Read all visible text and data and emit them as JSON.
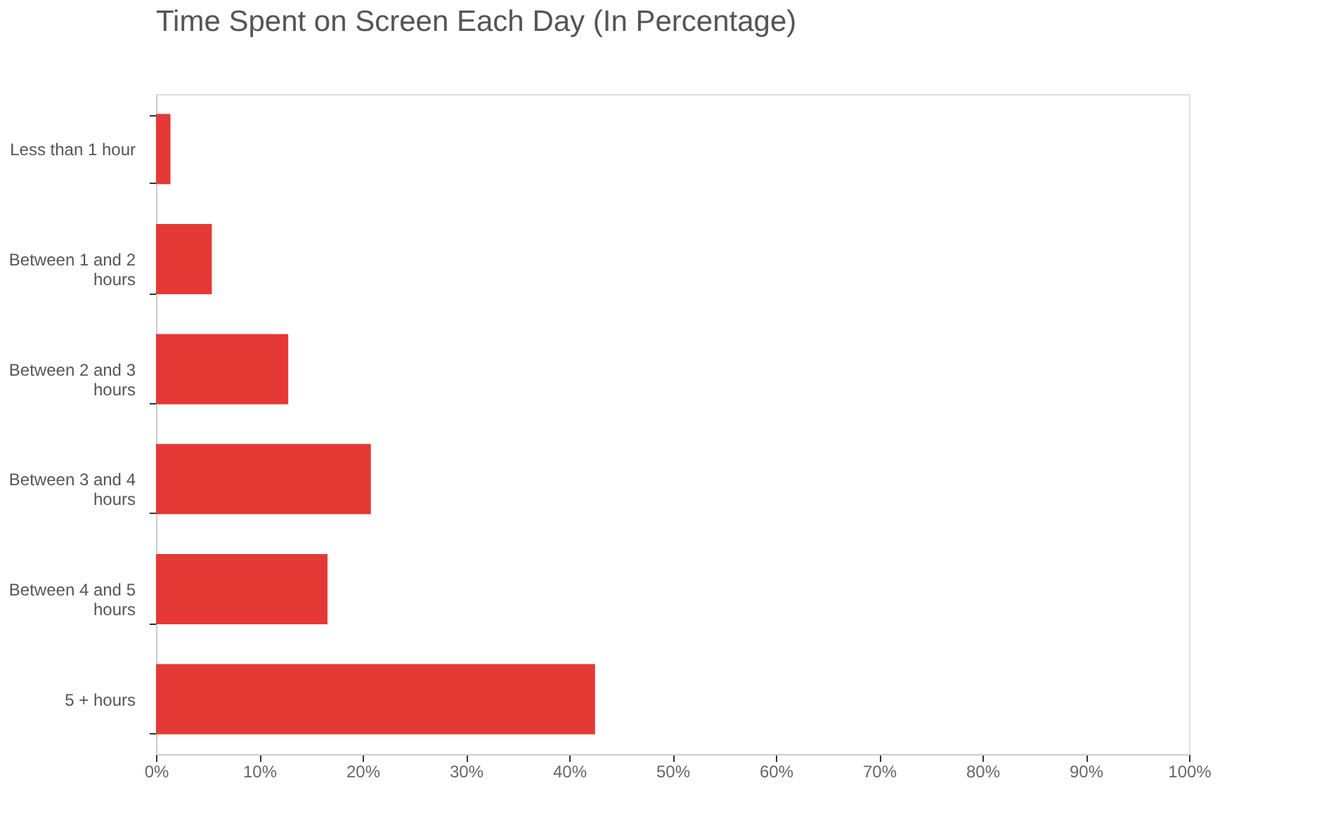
{
  "chart_data": {
    "type": "bar",
    "orientation": "horizontal",
    "title": "Time Spent on Screen Each Day (In Percentage)",
    "categories": [
      "Less than 1 hour",
      "Between 1 and 2 hours",
      "Between 2 and 3 hours",
      "Between 3 and 4 hours",
      "Between 4 and 5 hours",
      "5 + hours"
    ],
    "values": [
      1.4,
      5.4,
      12.8,
      20.8,
      16.6,
      42.5
    ],
    "color": "#e53935",
    "xlim": [
      0,
      100
    ],
    "xticks": [
      {
        "value": 0,
        "label": "0%"
      },
      {
        "value": 10,
        "label": "10%"
      },
      {
        "value": 20,
        "label": "20%"
      },
      {
        "value": 30,
        "label": "30%"
      },
      {
        "value": 40,
        "label": "40%"
      },
      {
        "value": 50,
        "label": "50%"
      },
      {
        "value": 60,
        "label": "60%"
      },
      {
        "value": 70,
        "label": "70%"
      },
      {
        "value": 80,
        "label": "80%"
      },
      {
        "value": 90,
        "label": "90%"
      },
      {
        "value": 100,
        "label": "100%"
      }
    ],
    "grid": false
  }
}
